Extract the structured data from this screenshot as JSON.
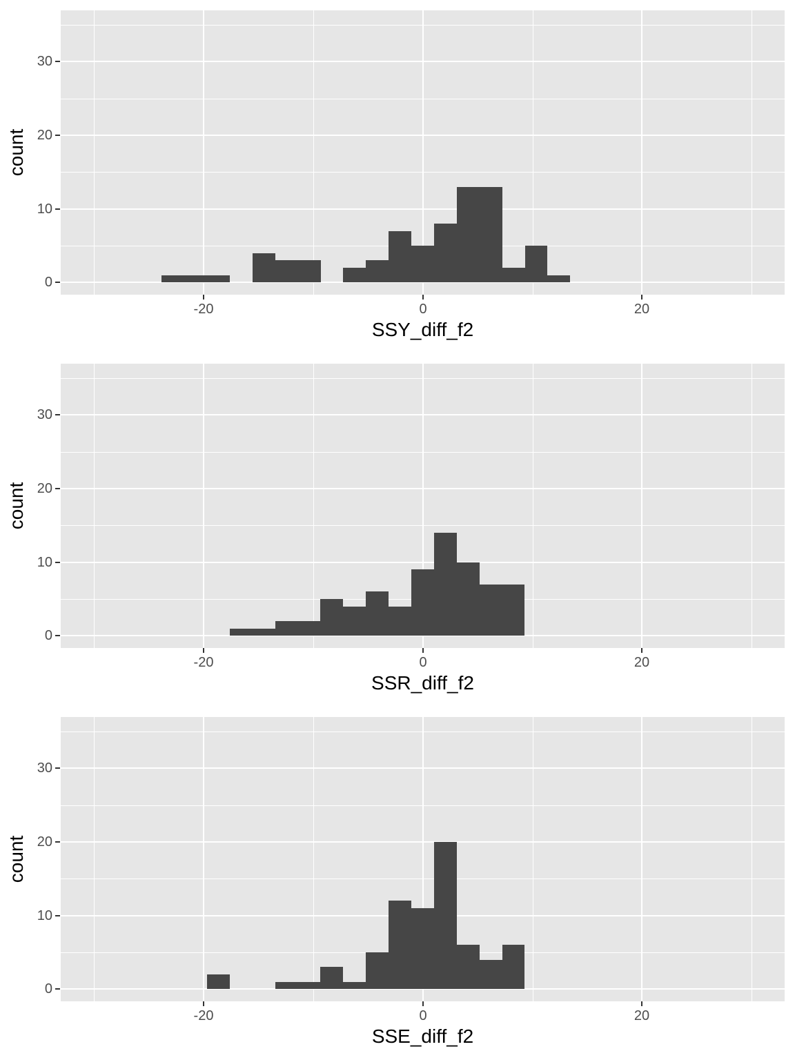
{
  "figure": {
    "kind": "ggplot2-style stacked histograms",
    "n_charts": 3,
    "colors": {
      "page_bg": "#FFFFFF",
      "panel_bg": "#E6E6E6",
      "grid": "#FFFFFF",
      "bar_fill": "#464646",
      "tick_text": "#4D4D4D",
      "title_text": "#000000",
      "tick_mark": "#333333"
    }
  },
  "chart_data": [
    {
      "type": "bar",
      "subtype": "histogram",
      "title": "",
      "xlabel": "SSY_diff_f2",
      "ylabel": "count",
      "xlim": [
        -33.03,
        33.01
      ],
      "ylim": [
        -1.66,
        36.97
      ],
      "grid": "on",
      "legend": "none",
      "x_major_ticks": [
        -20,
        0,
        20
      ],
      "x_tick_labels": [
        "-20",
        "0",
        "20"
      ],
      "x_minor_ticks": [
        -30,
        -10,
        10,
        30
      ],
      "y_major_ticks": [
        0,
        10,
        20,
        30
      ],
      "y_tick_labels": [
        "0",
        "10",
        "20",
        "30"
      ],
      "y_minor_ticks": [
        5,
        15,
        25,
        35
      ],
      "bin_start": -23.82,
      "bin_width": 2.0705,
      "counts": [
        1,
        1,
        1,
        0,
        4,
        3,
        3,
        0,
        2,
        3,
        7,
        5,
        8,
        13,
        13,
        2,
        5,
        1
      ],
      "total_n": 72
    },
    {
      "type": "bar",
      "subtype": "histogram",
      "title": "",
      "xlabel": "SSR_diff_f2",
      "ylabel": "count",
      "xlim": [
        -33.03,
        33.01
      ],
      "ylim": [
        -1.66,
        36.97
      ],
      "grid": "on",
      "legend": "none",
      "x_major_ticks": [
        -20,
        0,
        20
      ],
      "x_tick_labels": [
        "-20",
        "0",
        "20"
      ],
      "x_minor_ticks": [
        -30,
        -10,
        10,
        30
      ],
      "y_major_ticks": [
        0,
        10,
        20,
        30
      ],
      "y_tick_labels": [
        "0",
        "10",
        "20",
        "30"
      ],
      "y_minor_ticks": [
        5,
        15,
        25,
        35
      ],
      "bin_start": -17.61,
      "bin_width": 2.0705,
      "counts": [
        1,
        1,
        2,
        2,
        5,
        4,
        6,
        4,
        9,
        14,
        10,
        7,
        7
      ],
      "total_n": 72
    },
    {
      "type": "bar",
      "subtype": "histogram",
      "title": "",
      "xlabel": "SSE_diff_f2",
      "ylabel": "count",
      "xlim": [
        -33.03,
        33.01
      ],
      "ylim": [
        -1.66,
        36.97
      ],
      "grid": "on",
      "legend": "none",
      "x_major_ticks": [
        -20,
        0,
        20
      ],
      "x_tick_labels": [
        "-20",
        "0",
        "20"
      ],
      "x_minor_ticks": [
        -30,
        -10,
        10,
        30
      ],
      "y_major_ticks": [
        0,
        10,
        20,
        30
      ],
      "y_tick_labels": [
        "0",
        "10",
        "20",
        "30"
      ],
      "y_minor_ticks": [
        5,
        15,
        25,
        35
      ],
      "bin_start": -19.68,
      "bin_width": 2.0705,
      "counts": [
        2,
        0,
        0,
        1,
        1,
        3,
        1,
        5,
        12,
        11,
        20,
        6,
        4,
        6
      ],
      "total_n": 72
    }
  ]
}
